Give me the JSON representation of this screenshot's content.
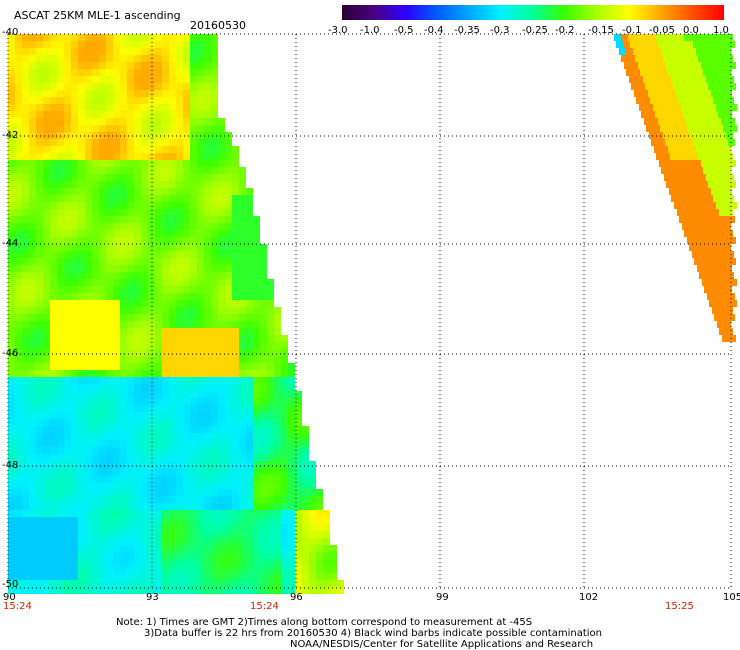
{
  "header": {
    "product": "ASCAT 25KM MLE-1 ascending",
    "date": "20160530"
  },
  "colorbar": {
    "ticks": [
      "-3.0",
      "-1.0",
      "-0.5",
      "-0.4",
      "-0.35",
      "-0.3",
      "-0.25",
      "-0.2",
      "-0.15",
      "-0.1",
      "-0.05",
      "0.0",
      "1.0"
    ],
    "colors": [
      "#2a0033",
      "#4b0082",
      "#2d00ff",
      "#005cff",
      "#00a8ff",
      "#00f0ff",
      "#00ff96",
      "#38ff00",
      "#a8ff00",
      "#ffff00",
      "#ffa800",
      "#ff5000",
      "#ff0000"
    ]
  },
  "axes": {
    "lat_labels": [
      "-40",
      "-42",
      "-44",
      "-46",
      "-48",
      "-50"
    ],
    "lon_labels": [
      "90",
      "93",
      "96",
      "99",
      "102",
      "105"
    ]
  },
  "times": [
    "15:24",
    "15:24",
    "15:25"
  ],
  "notes": {
    "line1": "Note: 1) Times are GMT 2)Times along bottom correspond to measurement at -45S",
    "line2": "3)Data buffer is 22 hrs from 20160530 4) Black wind barbs indicate possible contamination",
    "line3": "NOAA/NESDIS/Center for Satellite Applications and Research"
  }
}
